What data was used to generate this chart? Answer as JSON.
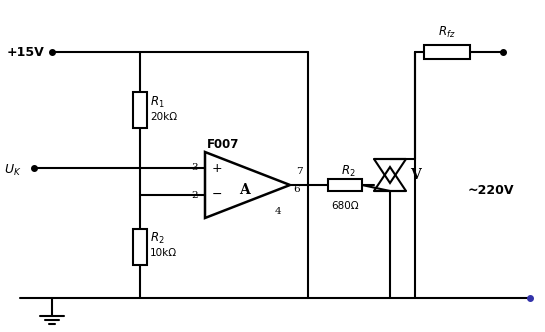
{
  "bg_color": "#ffffff",
  "line_color": "#000000",
  "components": {
    "plus15V_label": "+15V",
    "UK_label": "U_K",
    "F007_label": "F007",
    "R1_label": "R_1",
    "R1_value": "20kΩ",
    "R2left_label": "R_2",
    "R2left_value": "10kΩ",
    "R2out_label": "R_2",
    "R2out_value": "680Ω",
    "Rfz_label": "R_{fz}",
    "V_label": "V",
    "voltage_label": "~220V",
    "pin3": "3",
    "pin2": "2",
    "pin7": "7",
    "pin6": "6",
    "pin4": "4",
    "A_label": "A"
  }
}
